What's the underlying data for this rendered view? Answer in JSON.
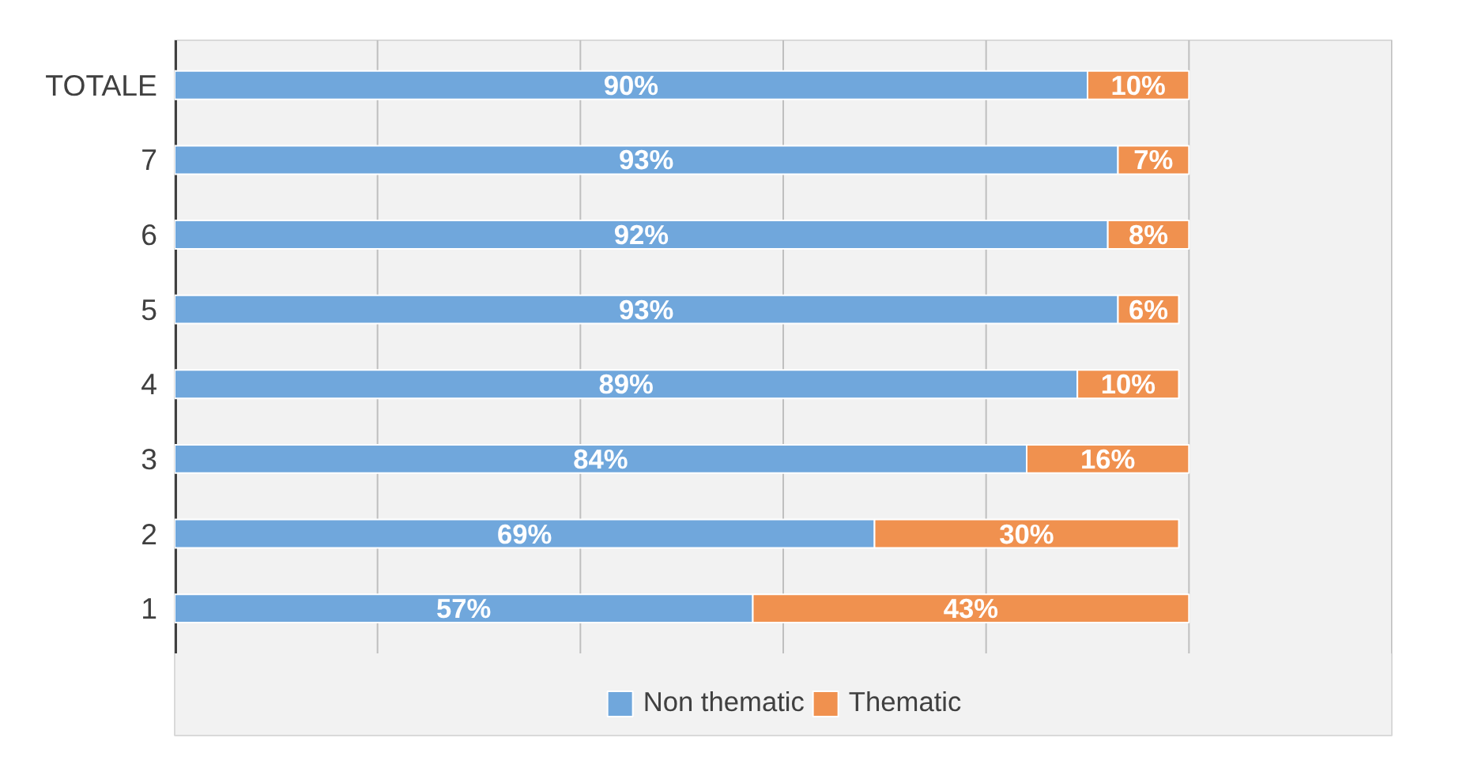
{
  "chart_data": {
    "type": "bar",
    "orientation": "horizontal",
    "stacked": true,
    "categories": [
      "TOTALE",
      "7",
      "6",
      "5",
      "4",
      "3",
      "2",
      "1"
    ],
    "series": [
      {
        "name": "Non thematic",
        "color": "#70a7dc",
        "values": [
          90,
          93,
          92,
          93,
          89,
          84,
          69,
          57
        ],
        "value_labels": [
          "90%",
          "93%",
          "92%",
          "93%",
          "89%",
          "84%",
          "69%",
          "57%"
        ]
      },
      {
        "name": "Thematic",
        "color": "#f0914f",
        "values": [
          10,
          7,
          8,
          6,
          10,
          16,
          30,
          43
        ],
        "value_labels": [
          "10%",
          "7%",
          "8%",
          "6%",
          "10%",
          "16%",
          "30%",
          "43%"
        ]
      }
    ],
    "xlim": [
      0,
      120
    ],
    "xticks": [
      {
        "value": 0,
        "label": null
      },
      {
        "value": 20,
        "label": null
      },
      {
        "value": 40,
        "label": null
      },
      {
        "value": 60,
        "label": null
      },
      {
        "value": 80,
        "label": null
      },
      {
        "value": 100,
        "label": null
      },
      {
        "value": 120,
        "label": null
      }
    ],
    "tick_labels": "y",
    "grid": "x",
    "legend": "bottom"
  }
}
